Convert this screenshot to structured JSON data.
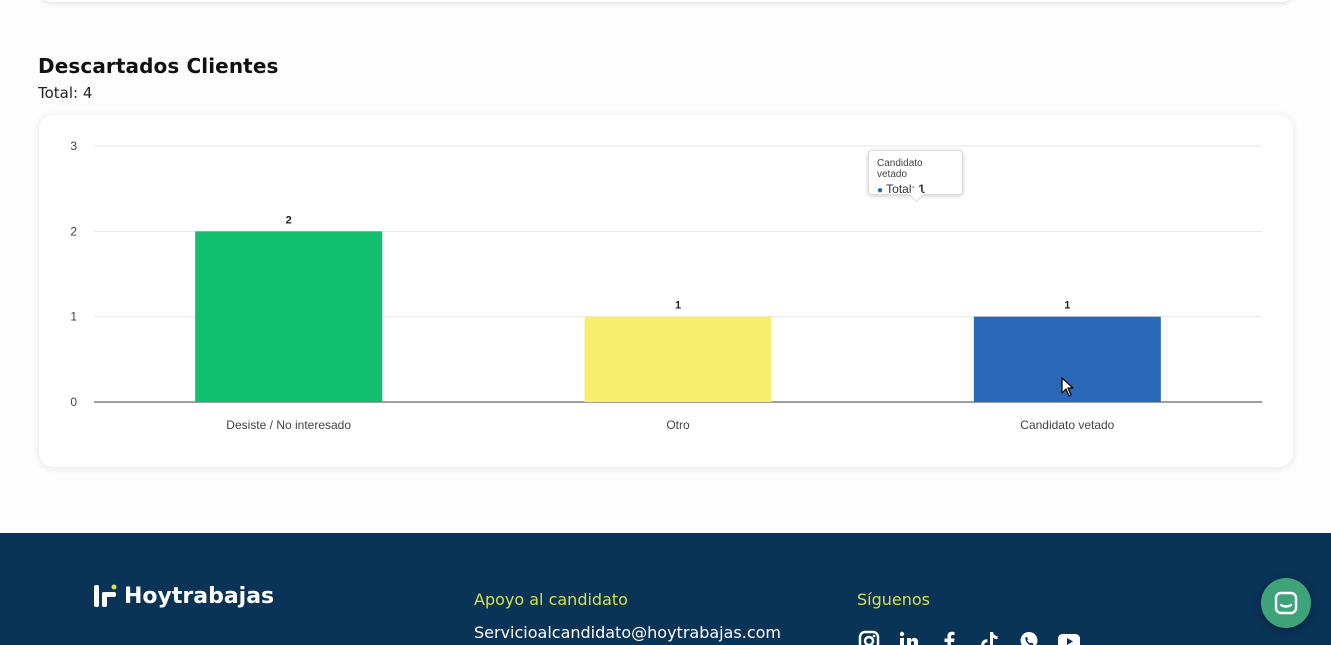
{
  "section": {
    "title": "Descartados Clientes",
    "total": "Total: 4"
  },
  "chart_data": {
    "type": "bar",
    "categories": [
      "Desiste / No interesado",
      "Otro",
      "Candidato vetado"
    ],
    "values": [
      2,
      1,
      1
    ],
    "colors": [
      "#12bf6f",
      "#f8ee6e",
      "#2a68b8"
    ],
    "ylim": [
      0,
      3
    ],
    "yticks": [
      0,
      1,
      2,
      3
    ],
    "grid": true,
    "data_labels": true
  },
  "tooltip": {
    "title": "Candidato vetado",
    "series_label": "Total:",
    "value": "1"
  },
  "footer": {
    "brand_name": "Hoytrabajas",
    "support_title": "Apoyo al candidato",
    "support_email": "Servicioalcandidato@hoytrabajas.com",
    "follow_title": "Síguenos",
    "socials": [
      "instagram-icon",
      "linkedin-icon",
      "facebook-icon",
      "tiktok-icon",
      "whatsapp-icon",
      "youtube-icon"
    ],
    "background": "#0a3358",
    "accent": "#d6e04a"
  },
  "chat": {
    "icon": "chat-icon",
    "color": "#3fa37a"
  }
}
